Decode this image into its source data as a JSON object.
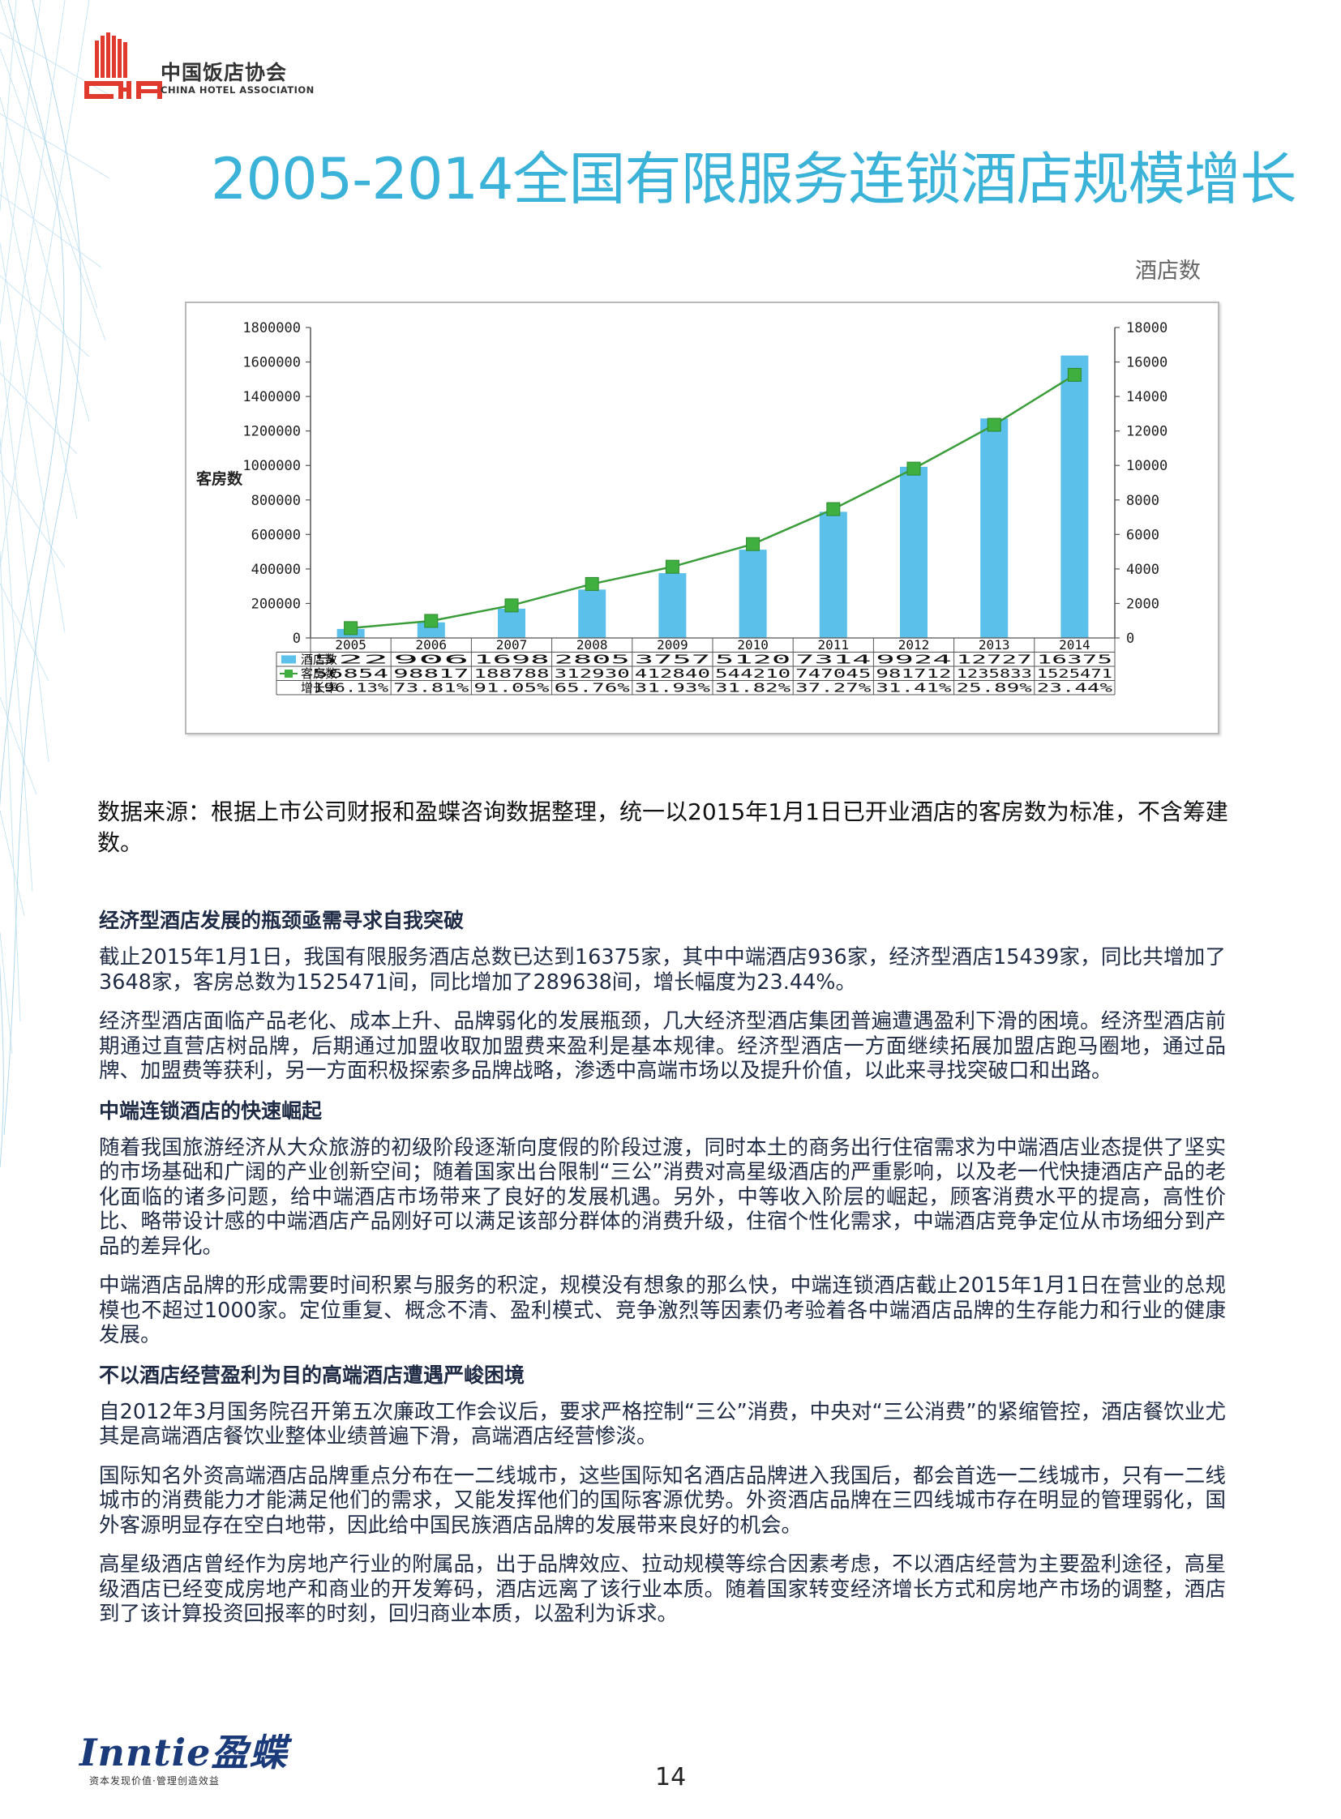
{
  "header": {
    "logo_cn": "中国饭店协会",
    "logo_en": "CHINA HOTEL ASSOCIATION",
    "title": "2005-2014全国有限服务连锁酒店规模增长"
  },
  "chart_data": {
    "type": "bar",
    "categories": [
      "2005",
      "2006",
      "2007",
      "2008",
      "2009",
      "2010",
      "2011",
      "2012",
      "2013",
      "2014"
    ],
    "series": [
      {
        "name": "酒店数",
        "type": "bar",
        "axis": "right",
        "color": "#5bc0ea",
        "values": [
          522,
          906,
          1698,
          2805,
          3757,
          5120,
          7314,
          9924,
          12727,
          16375
        ]
      },
      {
        "name": "客房数",
        "type": "line",
        "axis": "left",
        "color": "#3a9d3a",
        "values": [
          56854,
          98817,
          188788,
          312930,
          412840,
          544210,
          747045,
          981712,
          1235833,
          1525471
        ]
      },
      {
        "name": "增长率",
        "type": "table",
        "values": [
          "196.13%",
          "73.81%",
          "91.05%",
          "65.76%",
          "31.93%",
          "31.82%",
          "37.27%",
          "31.41%",
          "25.89%",
          "23.44%"
        ]
      }
    ],
    "table_values": {
      "hotels": [
        "522",
        "906",
        "1698",
        "2805",
        "3757",
        "5120",
        "7314",
        "9924",
        "12727",
        "16375"
      ],
      "rooms": [
        "56854",
        "98817",
        "188788",
        "312930",
        "412840",
        "544210",
        "747045",
        "981712",
        "1235833",
        "1525471"
      ],
      "growth": [
        "196.13%",
        "73.81%",
        "91.05%",
        "65.76%",
        "31.93%",
        "31.82%",
        "37.27%",
        "31.41%",
        "25.89%",
        "23.44%"
      ]
    },
    "ylabel_left": "客房数",
    "ylabel_right": "酒店数",
    "ylim_left": [
      0,
      1800000
    ],
    "ylim_right": [
      0,
      18000
    ],
    "yticks_left": [
      "1800000",
      "1600000",
      "1400000",
      "1200000",
      "1000000",
      "800000",
      "600000",
      "400000",
      "200000",
      "0"
    ],
    "yticks_right": [
      "18000",
      "16000",
      "14000",
      "12000",
      "10000",
      "8000",
      "6000",
      "4000",
      "2000",
      "0"
    ],
    "legend_placement": "data-table-left",
    "legend": {
      "hotels": "酒店数",
      "rooms": "客房数",
      "growth": "增长率"
    }
  },
  "source": "数据来源：根据上市公司财报和盈蝶咨询数据整理，统一以2015年1月1日已开业酒店的客房数为标准，不含筹建数。",
  "sections": [
    {
      "heading": "经济型酒店发展的瓶颈亟需寻求自我突破",
      "paragraphs": [
        "截止2015年1月1日，我国有限服务酒店总数已达到16375家，其中中端酒店936家，经济型酒店15439家，同比共增加了3648家，客房总数为1525471间，同比增加了289638间，增长幅度为23.44%。",
        "经济型酒店面临产品老化、成本上升、品牌弱化的发展瓶颈，几大经济型酒店集团普遍遭遇盈利下滑的困境。经济型酒店前期通过直营店树品牌，后期通过加盟收取加盟费来盈利是基本规律。经济型酒店一方面继续拓展加盟店跑马圈地，通过品牌、加盟费等获利，另一方面积极探索多品牌战略，渗透中高端市场以及提升价值，以此来寻找突破口和出路。"
      ]
    },
    {
      "heading": "中端连锁酒店的快速崛起",
      "paragraphs": [
        "随着我国旅游经济从大众旅游的初级阶段逐渐向度假的阶段过渡，同时本土的商务出行住宿需求为中端酒店业态提供了坚实的市场基础和广阔的产业创新空间；随着国家出台限制“三公”消费对高星级酒店的严重影响，以及老一代快捷酒店产品的老化面临的诸多问题，给中端酒店市场带来了良好的发展机遇。另外，中等收入阶层的崛起，顾客消费水平的提高，高性价比、略带设计感的中端酒店产品刚好可以满足该部分群体的消费升级，住宿个性化需求，中端酒店竞争定位从市场细分到产品的差异化。",
        "中端酒店品牌的形成需要时间积累与服务的积淀，规模没有想象的那么快，中端连锁酒店截止2015年1月1日在营业的总规模也不超过1000家。定位重复、概念不清、盈利模式、竞争激烈等因素仍考验着各中端酒店品牌的生存能力和行业的健康发展。"
      ]
    },
    {
      "heading": "不以酒店经营盈利为目的高端酒店遭遇严峻困境",
      "paragraphs": [
        "自2012年3月国务院召开第五次廉政工作会议后，要求严格控制“三公”消费，中央对“三公消费”的紧缩管控，酒店餐饮业尤其是高端酒店餐饮业整体业绩普遍下滑，高端酒店经营惨淡。",
        "国际知名外资高端酒店品牌重点分布在一二线城市，这些国际知名酒店品牌进入我国后，都会首选一二线城市，只有一二线城市的消费能力才能满足他们的需求，又能发挥他们的国际客源优势。外资酒店品牌在三四线城市存在明显的管理弱化，国外客源明显存在空白地带，因此给中国民族酒店品牌的发展带来良好的机会。",
        "高星级酒店曾经作为房地产行业的附属品，出于品牌效应、拉动规模等综合因素考虑，不以酒店经营为主要盈利途径，高星级酒店已经变成房地产和商业的开发筹码，酒店远离了该行业本质。随着国家转变经济增长方式和房地产市场的调整，酒店到了该计算投资回报率的时刻，回归商业本质，以盈利为诉求。"
      ]
    }
  ],
  "footer": {
    "brand": "Inntie盈蝶",
    "tagline": "资本发现价值·管理创造效益",
    "page_number": "14"
  },
  "colors": {
    "title": "#3bb2d8",
    "bar": "#5bc0ea",
    "line": "#3a9d3a",
    "logo_red": "#e03a2f",
    "brand_blue": "#1a3a7a"
  }
}
